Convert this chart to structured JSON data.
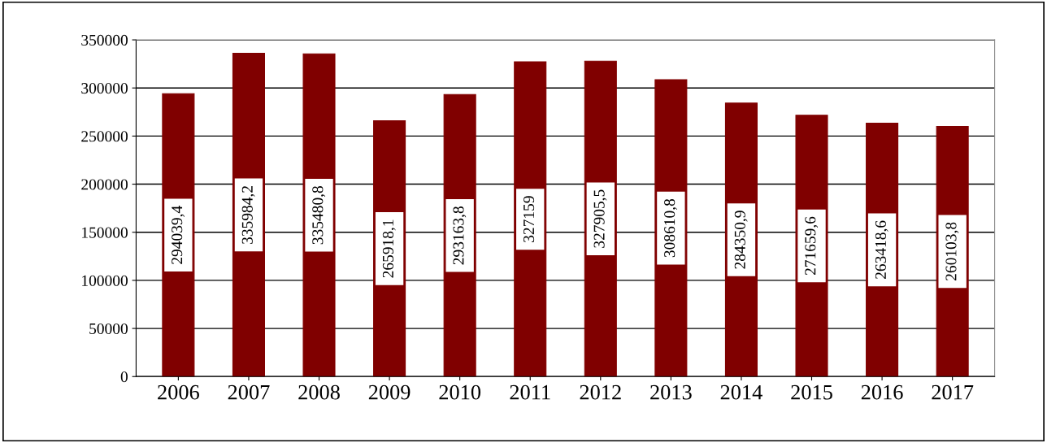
{
  "chart_data": {
    "type": "bar",
    "categories": [
      "2006",
      "2007",
      "2008",
      "2009",
      "2010",
      "2011",
      "2012",
      "2013",
      "2014",
      "2015",
      "2016",
      "2017"
    ],
    "values": [
      294039.4,
      335984.2,
      335480.8,
      265918.1,
      293163.8,
      327159,
      327905.5,
      308610.8,
      284350.9,
      271659.6,
      263418.6,
      260103.8
    ],
    "value_labels": [
      "294039,4",
      "335984,2",
      "335480,8",
      "265918,1",
      "293163,8",
      "327159",
      "327905,5",
      "308610,8",
      "284350,9",
      "271659,6",
      "263418,6",
      "260103,8"
    ],
    "color": "#800000",
    "ylim": [
      0,
      350000
    ],
    "yticks": [
      0,
      50000,
      100000,
      150000,
      200000,
      250000,
      300000,
      350000
    ],
    "grid": "y",
    "legend": false
  }
}
